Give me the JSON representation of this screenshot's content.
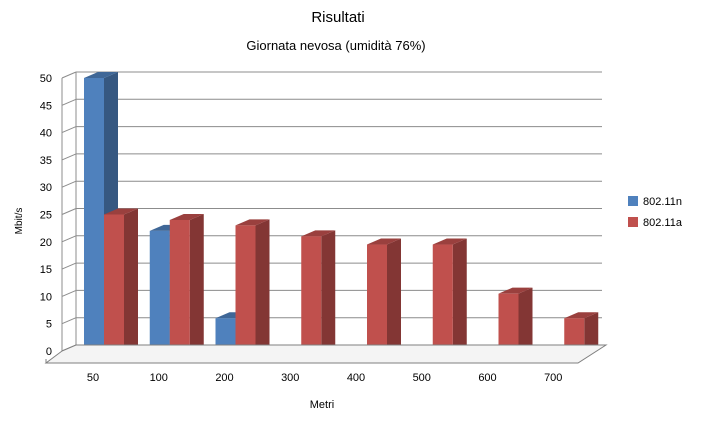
{
  "chart_data": {
    "type": "bar",
    "title": "Risultati",
    "subtitle": "Giornata nevosa (umidità 76%)",
    "xlabel": "Metri",
    "ylabel": "Mbit/s",
    "ylim": [
      0,
      50
    ],
    "yticks": [
      0,
      5,
      10,
      15,
      20,
      25,
      30,
      35,
      40,
      45,
      50
    ],
    "grid": true,
    "three_d": true,
    "legend_position": "right",
    "categories": [
      "50",
      "100",
      "200",
      "300",
      "400",
      "500",
      "600",
      "700"
    ],
    "series": [
      {
        "name": "802.11n",
        "color": "#4F81BD",
        "values": [
          50,
          22,
          6,
          null,
          null,
          null,
          null,
          null
        ]
      },
      {
        "name": "802.11a",
        "color": "#C0504D",
        "values": [
          25,
          24,
          23,
          21,
          19.5,
          19.5,
          10.5,
          6
        ]
      }
    ]
  }
}
